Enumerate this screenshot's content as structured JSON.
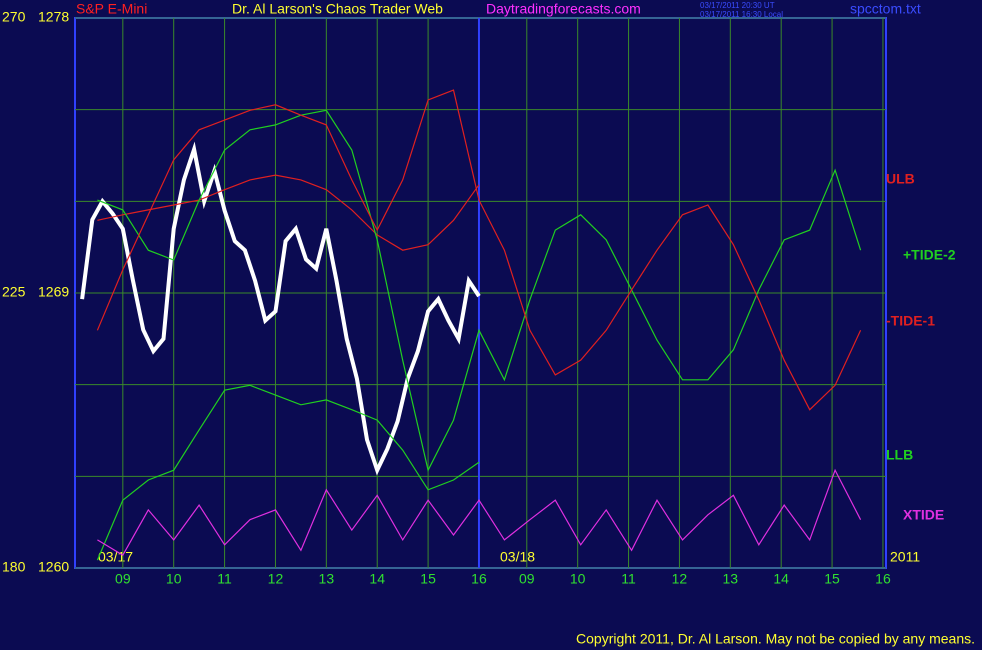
{
  "chart_data": {
    "type": "line",
    "title": "Dr. Al Larson's Chaos Trader Web",
    "site": "Daytradingforecasts.com",
    "timestamps": [
      "03/17/2011 20:30 UT",
      "03/17/2011 16:30 Local"
    ],
    "file": "spcctom.txt",
    "copyright": "Copyright 2011, Dr. Al Larson. May not be copied by any means.",
    "date_labels": [
      "03/17",
      "03/18",
      "2011"
    ],
    "xlim": [
      8.06,
      24.0
    ],
    "xticks": [
      {
        "value": 9,
        "label": "09"
      },
      10,
      11,
      12,
      13,
      14,
      15,
      16,
      {
        "value": 16.94,
        "label": "09"
      },
      {
        "value": 17.94,
        "label": "10"
      },
      {
        "value": 18.94,
        "label": "11"
      },
      {
        "value": 19.94,
        "label": "12"
      },
      {
        "value": 20.94,
        "label": "13"
      },
      {
        "value": 21.94,
        "label": "14"
      },
      {
        "value": 22.94,
        "label": "15"
      },
      {
        "value": 23.94,
        "label": "16"
      }
    ],
    "ylim": [
      1260,
      1278
    ],
    "yticks": [
      1260,
      1269,
      1278
    ],
    "y2lim": [
      180,
      270
    ],
    "y2ticks": [
      180,
      225,
      270
    ],
    "grid": true,
    "series": [
      {
        "name": "S&P E-Mini",
        "color": "#ffffff",
        "x": [
          8.2,
          8.4,
          8.6,
          8.8,
          9,
          9.2,
          9.4,
          9.6,
          9.8,
          10,
          10.2,
          10.4,
          10.6,
          10.8,
          11,
          11.2,
          11.4,
          11.6,
          11.8,
          12,
          12.2,
          12.4,
          12.6,
          12.8,
          13,
          13.2,
          13.4,
          13.6,
          13.8,
          14,
          14.2,
          14.4,
          14.6,
          14.8,
          15,
          15.2,
          15.4,
          15.6,
          15.8,
          16
        ],
        "values": [
          1268.8,
          1271.4,
          1272.0,
          1271.6,
          1271.1,
          1269.4,
          1267.8,
          1267.1,
          1267.5,
          1271.1,
          1272.7,
          1273.7,
          1272.0,
          1273.0,
          1271.7,
          1270.7,
          1270.4,
          1269.4,
          1268.1,
          1268.4,
          1270.7,
          1271.1,
          1270.1,
          1269.8,
          1271.1,
          1269.4,
          1267.5,
          1266.2,
          1264.2,
          1263.2,
          1263.9,
          1264.8,
          1266.2,
          1267.1,
          1268.4,
          1268.8,
          1268.1,
          1267.5,
          1269.4,
          1268.9
        ]
      },
      {
        "name": "ULB",
        "color": "#e02020",
        "axis": "y2",
        "x": [
          8.5,
          9,
          9.5,
          10,
          10.5,
          11,
          11.5,
          12,
          12.5,
          13,
          13.5,
          14,
          14.5,
          15,
          15.5,
          16
        ],
        "values": [
          236.9,
          237.8,
          238.6,
          239.4,
          240.2,
          241.9,
          243.5,
          244.3,
          243.5,
          241.9,
          238.6,
          234.5,
          232.0,
          232.9,
          236.9,
          242.7
        ]
      },
      {
        "name": "+TIDE-2",
        "color": "#20d020",
        "axis": "y2",
        "x": [
          8.5,
          9,
          9.5,
          10,
          10.5,
          11,
          11.5,
          12,
          12.5,
          13,
          13.5,
          14,
          14.5,
          15,
          15.5,
          16,
          16.5,
          17,
          17.5,
          18,
          18.5,
          19,
          19.5,
          20,
          20.5,
          21,
          21.5,
          22,
          22.5,
          23,
          23.5
        ],
        "values": [
          240.2,
          238.6,
          232.0,
          230.4,
          240.2,
          248.4,
          251.7,
          252.5,
          254.1,
          254.9,
          248.4,
          233.7,
          214.0,
          196.0,
          204.2,
          218.9,
          210.8,
          223.9,
          235.3,
          237.8,
          233.7,
          225.5,
          217.3,
          210.8,
          210.8,
          215.7,
          225.5,
          233.7,
          235.3,
          245.1,
          232.0
        ]
      },
      {
        "name": "-TIDE-1",
        "color": "#e02020",
        "axis": "y2",
        "x": [
          8.5,
          9,
          9.5,
          10,
          10.5,
          11,
          11.5,
          12,
          12.5,
          13,
          13.5,
          14,
          14.5,
          15,
          15.5,
          16,
          16.5,
          17,
          17.5,
          18,
          18.5,
          19,
          19.5,
          20,
          20.5,
          21,
          21.5,
          22,
          22.5,
          23,
          23.5
        ],
        "values": [
          218.9,
          228.8,
          237.8,
          246.8,
          251.7,
          253.3,
          254.9,
          255.8,
          254.1,
          252.5,
          243.5,
          235.3,
          243.5,
          256.6,
          258.2,
          240.2,
          232.0,
          218.9,
          211.6,
          214.0,
          218.9,
          225.5,
          232.0,
          237.8,
          239.4,
          232.9,
          223.9,
          214.0,
          205.9,
          209.9,
          218.9
        ]
      },
      {
        "name": "LLB",
        "color": "#20d020",
        "axis": "y2",
        "x": [
          8.5,
          9,
          9.5,
          10,
          10.5,
          11,
          11.5,
          12,
          12.5,
          13,
          13.5,
          14,
          14.5,
          15,
          15.5,
          16
        ],
        "values": [
          181.3,
          191.1,
          194.4,
          196.0,
          202.6,
          209.1,
          209.9,
          208.3,
          206.7,
          207.5,
          205.9,
          204.2,
          199.3,
          192.8,
          194.4,
          197.3
        ]
      },
      {
        "name": "XTIDE",
        "color": "#e030e0",
        "axis": "y2",
        "x": [
          8.5,
          9,
          9.5,
          10,
          10.5,
          11,
          11.5,
          12,
          12.5,
          13,
          13.5,
          14,
          14.5,
          15,
          15.5,
          16,
          16.5,
          17,
          17.5,
          18,
          18.5,
          19,
          19.5,
          20,
          20.5,
          21,
          21.5,
          22,
          22.5,
          23,
          23.5
        ],
        "values": [
          184.6,
          182.1,
          189.5,
          184.6,
          190.3,
          183.8,
          187.9,
          189.5,
          182.9,
          192.8,
          186.2,
          191.9,
          184.6,
          191.1,
          185.4,
          191.1,
          184.6,
          187.9,
          191.1,
          183.8,
          189.5,
          182.9,
          191.1,
          184.6,
          188.7,
          191.9,
          183.8,
          190.3,
          184.6,
          196.0,
          187.9
        ]
      }
    ]
  }
}
